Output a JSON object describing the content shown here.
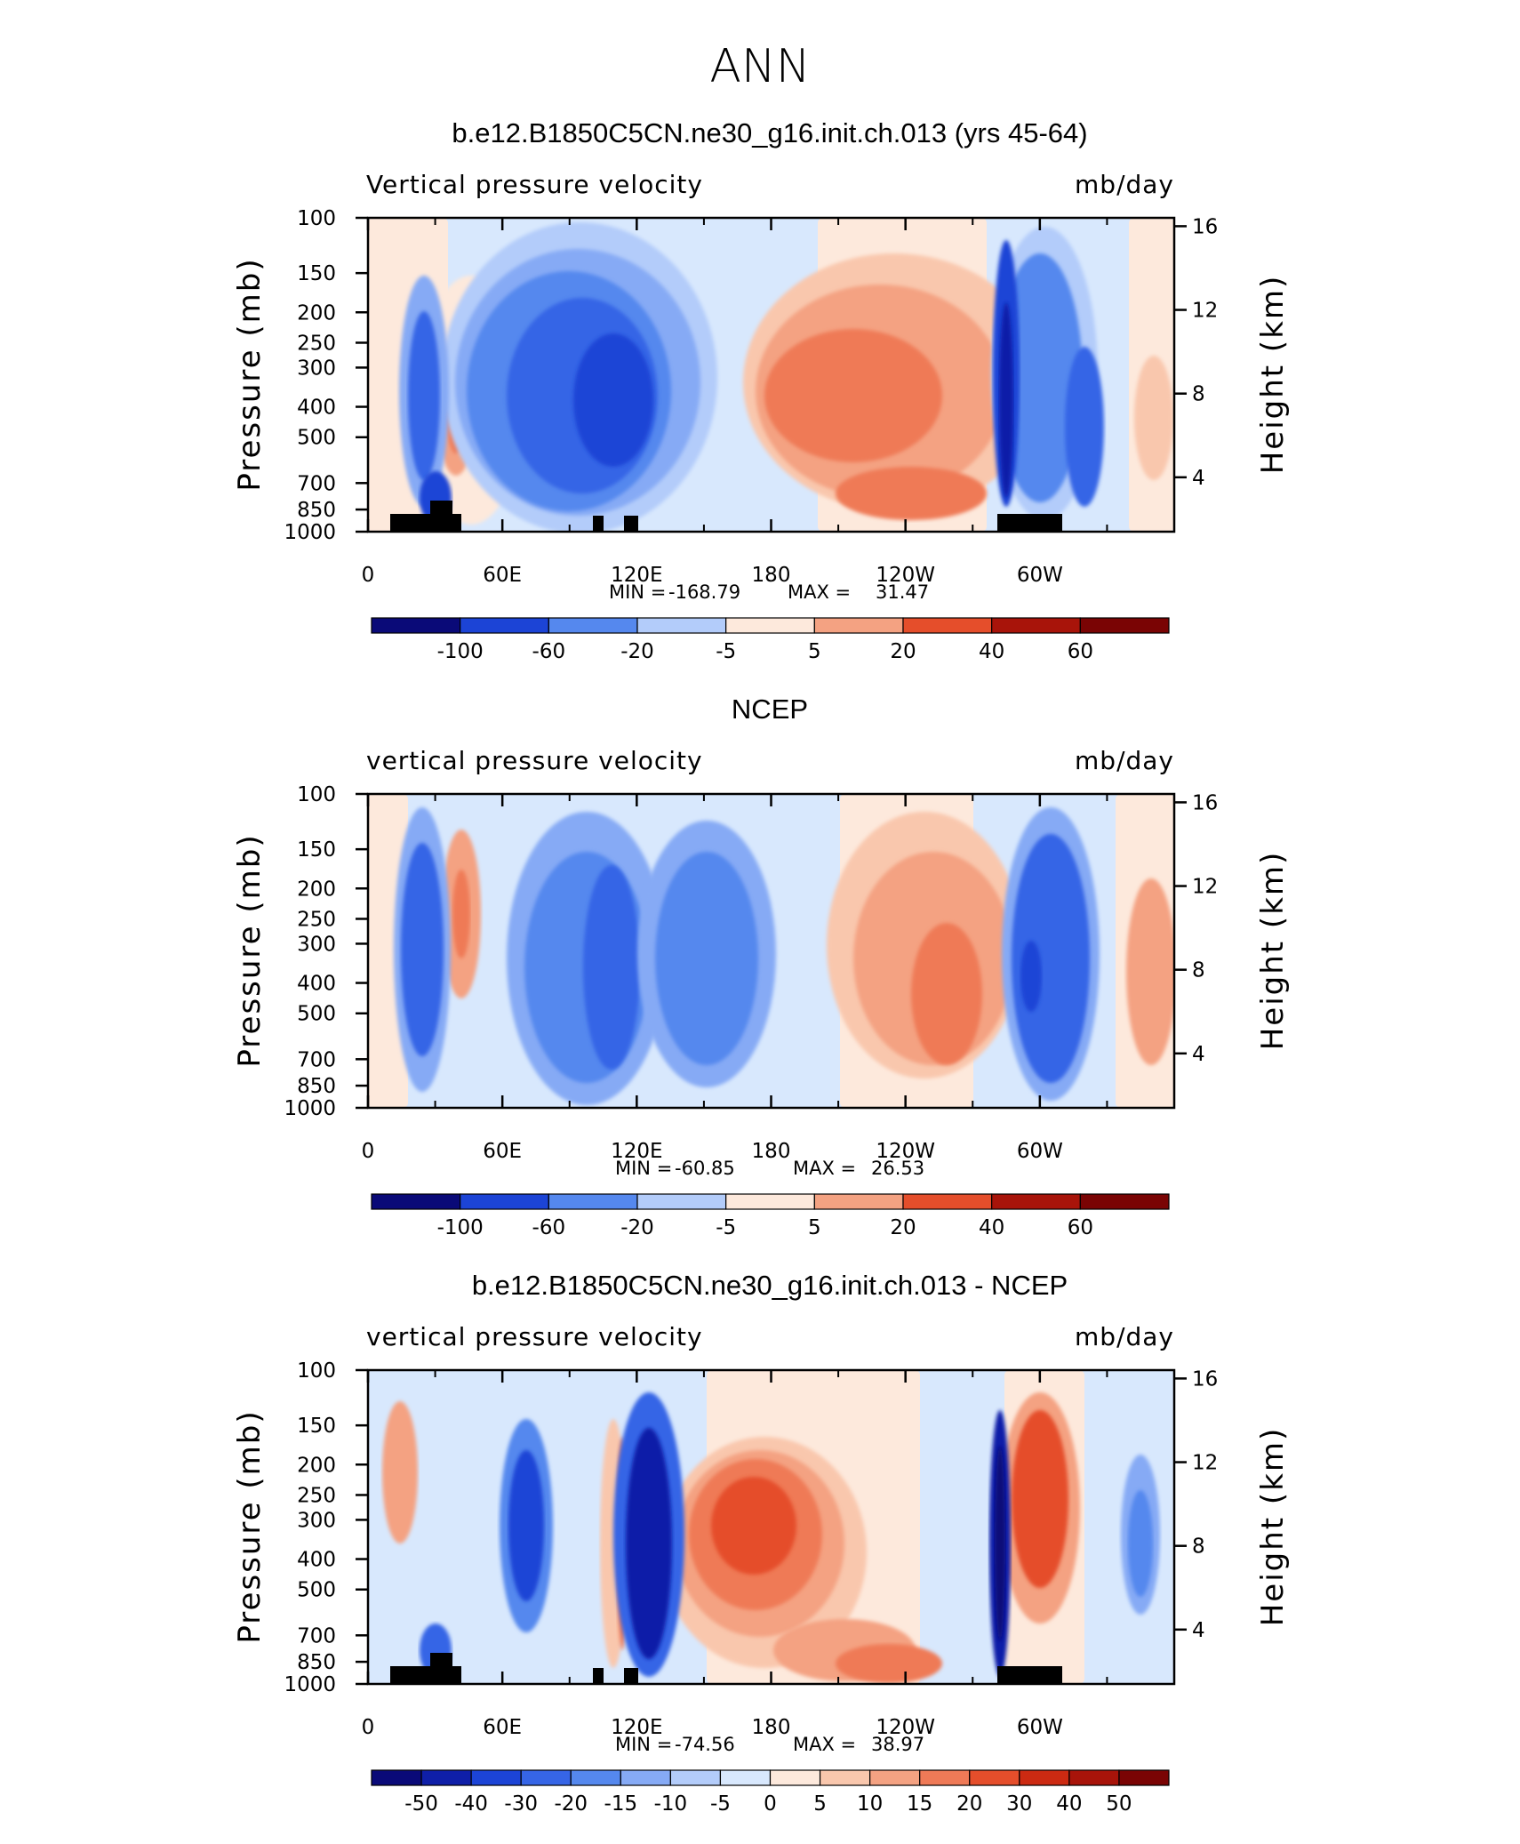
{
  "figure": {
    "title": "ANN"
  },
  "chart_data": [
    {
      "type": "heatmap",
      "title": "b.e12.B1850C5CN.ne30_g16.init.ch.013 (yrs 45-64)",
      "left_label": "Vertical pressure velocity",
      "right_label": "mb/day",
      "ylabel": "Pressure (mb)",
      "y2label": "Height (km)",
      "xticks": [
        "0",
        "60E",
        "120E",
        "180",
        "120W",
        "60W"
      ],
      "yticks": [
        "100",
        "150",
        "200",
        "250",
        "300",
        "400",
        "500",
        "700",
        "850",
        "1000"
      ],
      "y2ticks": [
        "16",
        "12",
        "8",
        "4"
      ],
      "stats": {
        "min_label": "MIN =",
        "min": "-168.79",
        "max_label": "MAX =",
        "max": "31.47"
      },
      "colorbar": {
        "labels": [
          "-100",
          "-60",
          "-20",
          "-5",
          "5",
          "20",
          "40",
          "60"
        ]
      },
      "topography": true
    },
    {
      "type": "heatmap",
      "title": "NCEP",
      "left_label": "vertical pressure velocity",
      "right_label": "mb/day",
      "ylabel": "Pressure (mb)",
      "y2label": "Height (km)",
      "xticks": [
        "0",
        "60E",
        "120E",
        "180",
        "120W",
        "60W"
      ],
      "yticks": [
        "100",
        "150",
        "200",
        "250",
        "300",
        "400",
        "500",
        "700",
        "850",
        "1000"
      ],
      "y2ticks": [
        "16",
        "12",
        "8",
        "4"
      ],
      "stats": {
        "min_label": "MIN =",
        "min": "-60.85",
        "max_label": "MAX =",
        "max": "26.53"
      },
      "colorbar": {
        "labels": [
          "-100",
          "-60",
          "-20",
          "-5",
          "5",
          "20",
          "40",
          "60"
        ]
      },
      "topography": false
    },
    {
      "type": "heatmap",
      "title": "b.e12.B1850C5CN.ne30_g16.init.ch.013 - NCEP",
      "left_label": "vertical pressure velocity",
      "right_label": "mb/day",
      "ylabel": "Pressure (mb)",
      "y2label": "Height (km)",
      "xticks": [
        "0",
        "60E",
        "120E",
        "180",
        "120W",
        "60W"
      ],
      "yticks": [
        "100",
        "150",
        "200",
        "250",
        "300",
        "400",
        "500",
        "700",
        "850",
        "1000"
      ],
      "y2ticks": [
        "16",
        "12",
        "8",
        "4"
      ],
      "stats": {
        "min_label": "MIN =",
        "min": "-74.56",
        "max_label": "MAX =",
        "max": "38.97"
      },
      "colorbar": {
        "labels": [
          "-50",
          "-40",
          "-30",
          "-20",
          "-15",
          "-10",
          "-5",
          "0",
          "5",
          "10",
          "15",
          "20",
          "30",
          "40",
          "50"
        ]
      },
      "topography": true
    }
  ],
  "palette": [
    "#0a0a78",
    "#0f1fa8",
    "#1c44d6",
    "#3665e6",
    "#5588ee",
    "#86aaf5",
    "#b3ccfa",
    "#d8e8fd",
    "#fde9dc",
    "#f9c7ad",
    "#f4a282",
    "#ef7a57",
    "#e54e2b",
    "#cc2a12",
    "#a8140a",
    "#7a0404"
  ]
}
